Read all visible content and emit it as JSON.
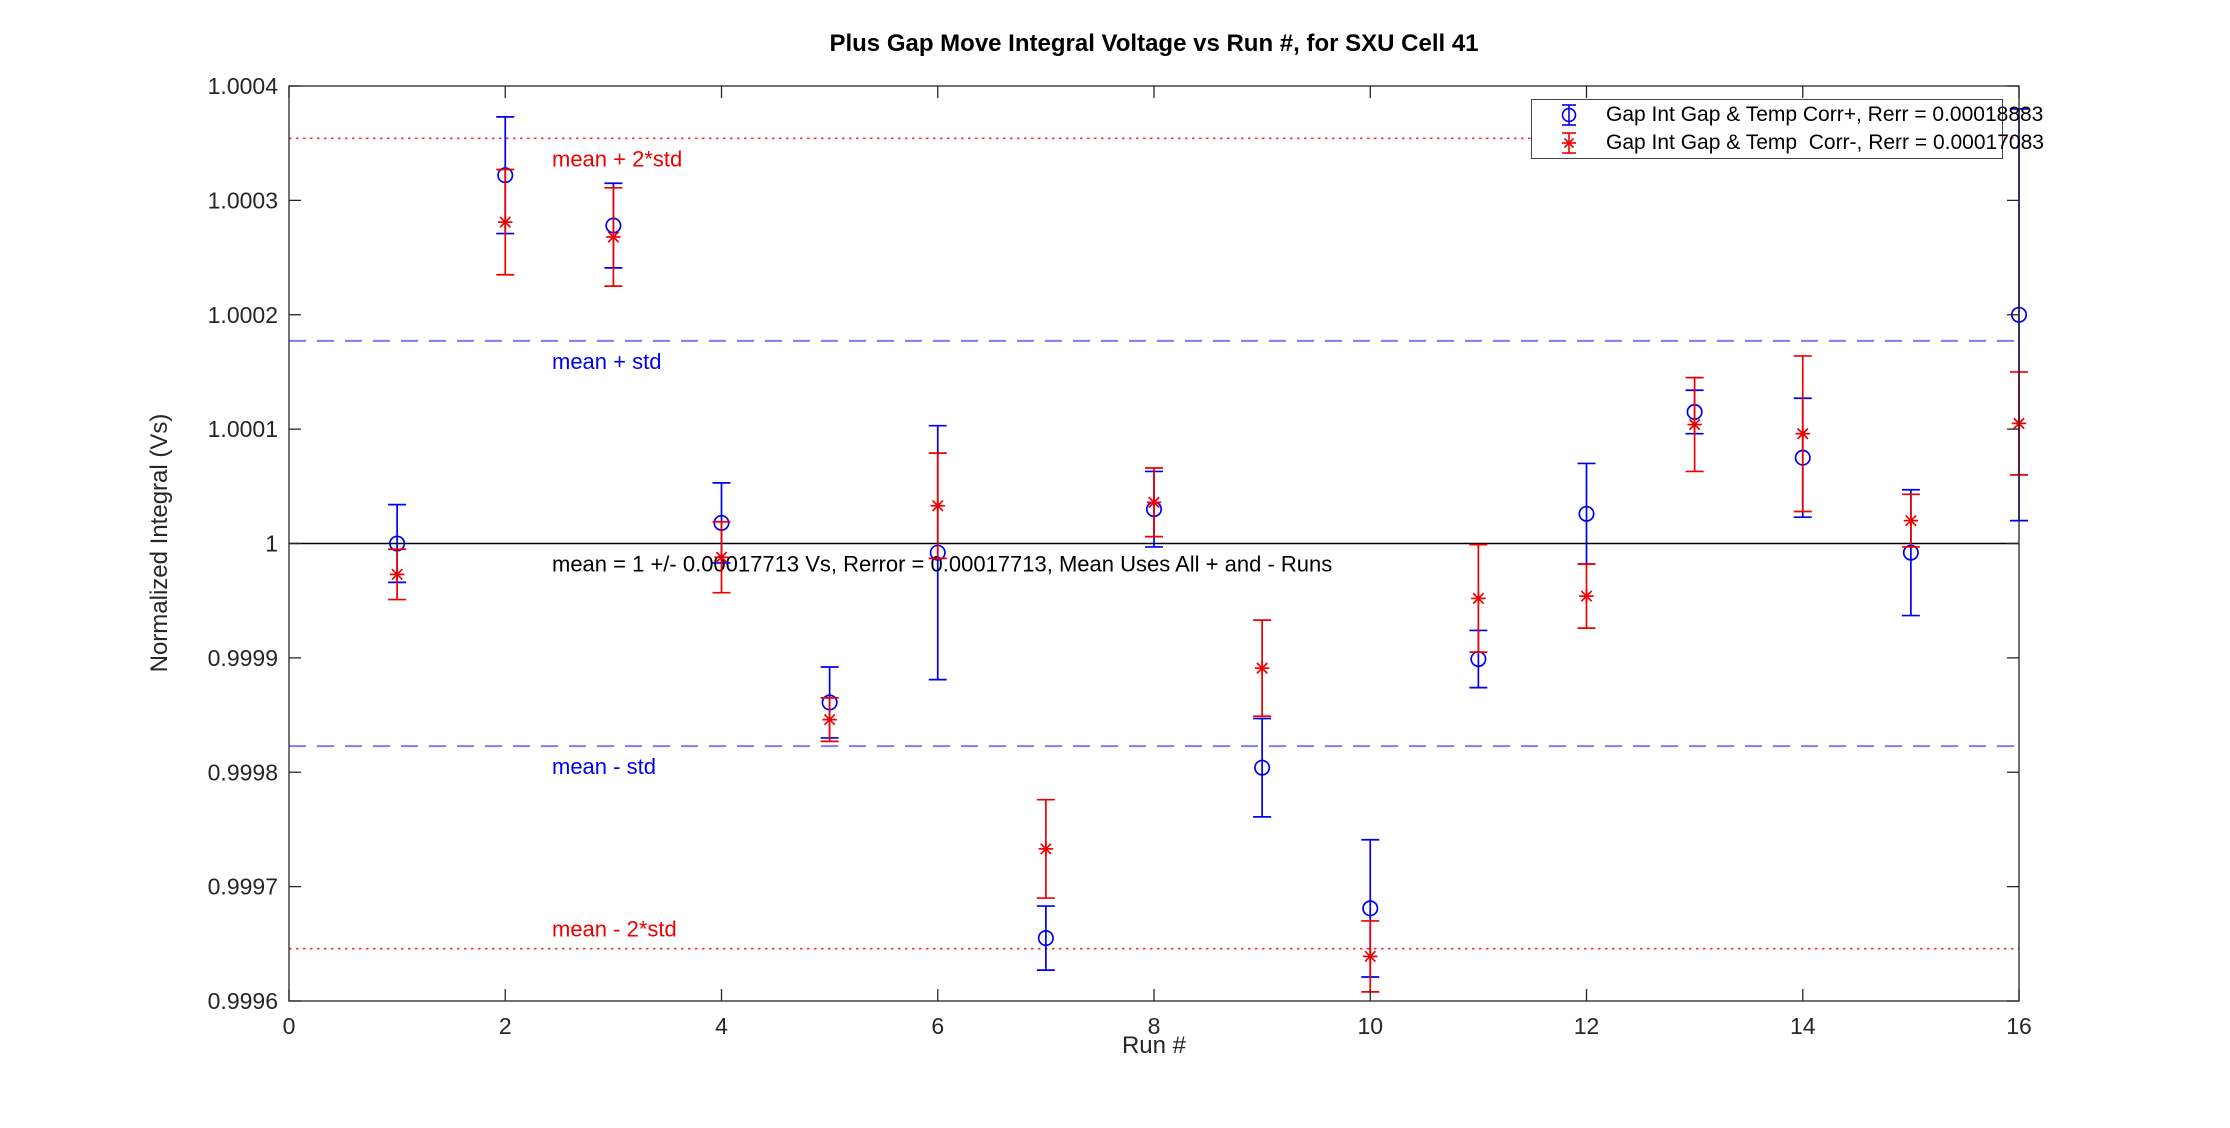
{
  "chart_data": {
    "type": "scatter",
    "title": "Plus Gap Move Integral Voltage vs Run #, for SXU Cell 41",
    "xlabel": "Run #",
    "ylabel": "Normalized Integral (Vs)",
    "xlim": [
      0,
      16
    ],
    "ylim": [
      0.9996,
      1.0004
    ],
    "grid": false,
    "legend_position": "top-right",
    "x_ticks": [
      0,
      2,
      4,
      6,
      8,
      10,
      12,
      14,
      16
    ],
    "x_tick_labels": [
      "0",
      "2",
      "4",
      "6",
      "8",
      "10",
      "12",
      "14",
      "16"
    ],
    "y_ticks": [
      0.9996,
      0.9997,
      0.9998,
      0.9999,
      1,
      1.0001,
      1.0002,
      1.0003,
      1.0004
    ],
    "y_tick_labels": [
      "0.9996",
      "0.9997",
      "0.9998",
      "0.9999",
      "1",
      "1.0001",
      "1.0002",
      "1.0003",
      "1.0004"
    ],
    "x": [
      1,
      2,
      3,
      4,
      5,
      6,
      7,
      8,
      9,
      10,
      11,
      12,
      13,
      14,
      15,
      16
    ],
    "series": [
      {
        "name": "Gap Int Gap & Temp Corr+, Rerr = 0.00018883",
        "marker": "circle",
        "color": "#0000ee",
        "values": [
          1.0,
          1.000322,
          1.000278,
          1.000018,
          0.999861,
          0.999992,
          0.999655,
          1.00003,
          0.999804,
          0.999681,
          0.999899,
          1.000026,
          1.000115,
          1.000075,
          0.999992,
          1.0002
        ],
        "errors": [
          3.4e-05,
          5.1e-05,
          3.7e-05,
          3.5e-05,
          3.1e-05,
          0.000111,
          2.8e-05,
          3.3e-05,
          4.3e-05,
          6e-05,
          2.5e-05,
          4.4e-05,
          1.9e-05,
          5.2e-05,
          5.5e-05,
          0.00018
        ]
      },
      {
        "name": "Gap Int Gap & Temp  Corr-, Rerr = 0.00017083",
        "marker": "asterisk",
        "color": "#ee0000",
        "values": [
          0.999973,
          1.000281,
          1.000268,
          0.999988,
          0.999846,
          1.000033,
          0.999733,
          1.000036,
          0.999891,
          0.999639,
          0.999952,
          0.999954,
          1.000104,
          1.000096,
          1.00002,
          1.000105
        ],
        "errors": [
          2.2e-05,
          4.6e-05,
          4.3e-05,
          3.1e-05,
          1.9e-05,
          4.6e-05,
          4.3e-05,
          3e-05,
          4.2e-05,
          3.1e-05,
          4.7e-05,
          2.8e-05,
          4.1e-05,
          6.8e-05,
          2.3e-05,
          4.5e-05
        ]
      }
    ],
    "reference_lines": [
      {
        "label": "mean + 2*std",
        "value": 1.00035426,
        "style": "dotted",
        "color": "#ee3333",
        "label_color": "#ee0000",
        "label_pos": "below"
      },
      {
        "label": "mean + std",
        "value": 1.00017713,
        "style": "dashed",
        "color": "#7d7df3",
        "label_color": "#0000ee",
        "label_pos": "below"
      },
      {
        "label": "mean = 1 +/- 0.00017713 Vs, Rerror = 0.00017713, Mean Uses All + and - Runs",
        "value": 1,
        "style": "solid",
        "color": "#000000",
        "label_color": "#000000",
        "label_pos": "below"
      },
      {
        "label": "mean - std",
        "value": 0.99982287,
        "style": "dashed",
        "color": "#7d7df3",
        "label_color": "#0000ee",
        "label_pos": "below"
      },
      {
        "label": "mean - 2*std",
        "value": 0.99964574,
        "style": "dotted",
        "color": "#ee3333",
        "label_color": "#ee0000",
        "label_pos": "above"
      }
    ],
    "axis_color": "#262626",
    "tick_font_px": 23,
    "ref_label_font_px": 22
  }
}
